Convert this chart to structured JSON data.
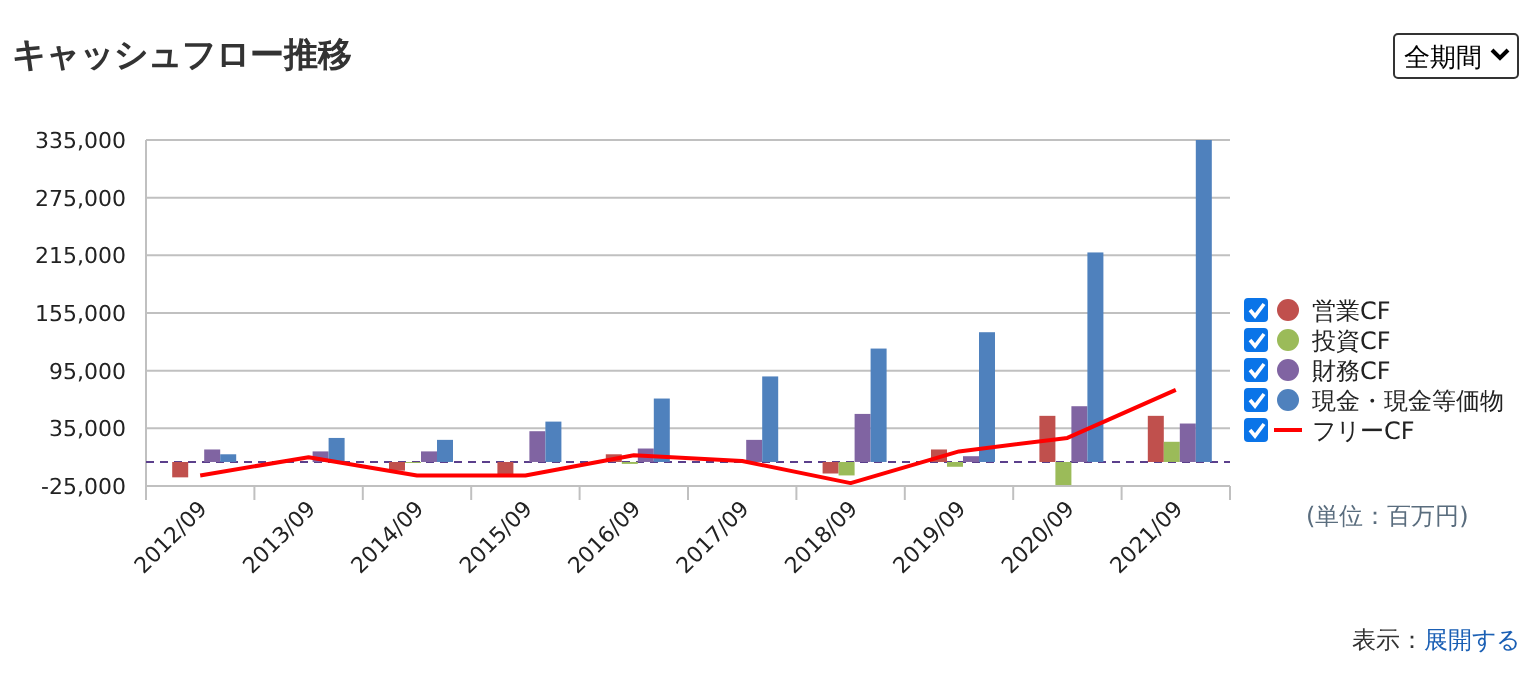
{
  "chart_data": {
    "type": "bar",
    "title": "キャッシュフロー推移",
    "categories": [
      "2012/09",
      "2013/09",
      "2014/09",
      "2015/09",
      "2016/09",
      "2017/09",
      "2018/09",
      "2019/09",
      "2020/09",
      "2021/09"
    ],
    "series": [
      {
        "name": "営業CF",
        "color": "#c0504d",
        "values": [
          -16000,
          null,
          -9000,
          -15000,
          8000,
          0,
          -12000,
          13000,
          48000,
          48000
        ]
      },
      {
        "name": "投資CF",
        "color": "#9bbb59",
        "values": [
          0,
          0,
          -1000,
          0,
          -2000,
          0,
          -14000,
          -5000,
          -24000,
          21000
        ]
      },
      {
        "name": "財務CF",
        "color": "#8064a2",
        "values": [
          13000,
          11000,
          11000,
          32000,
          14000,
          23000,
          50000,
          6000,
          58000,
          40000
        ]
      },
      {
        "name": "現金・現金等価物",
        "color": "#4f81bd",
        "values": [
          8000,
          25000,
          23000,
          42000,
          66000,
          89000,
          118000,
          135000,
          218000,
          335000
        ]
      },
      {
        "name": "フリーCF",
        "type": "line",
        "color": "#ff0000",
        "values": [
          -14000,
          5000,
          -14000,
          -14000,
          7000,
          1000,
          -22000,
          11000,
          25000,
          75000
        ]
      }
    ],
    "ylim": [
      -25000,
      335000
    ],
    "yticks": [
      {
        "value": -25000,
        "label": "-25,000"
      },
      {
        "value": 35000,
        "label": "35,000"
      },
      {
        "value": 95000,
        "label": "95,000"
      },
      {
        "value": 155000,
        "label": "155,000"
      },
      {
        "value": 215000,
        "label": "215,000"
      },
      {
        "value": 275000,
        "label": "275,000"
      },
      {
        "value": 335000,
        "label": "335,000"
      }
    ],
    "grid": "y",
    "legend": "right",
    "ref_lines": [
      {
        "axis": "y",
        "value": 0,
        "color": "#5b3f8c",
        "line_style": "dashed"
      }
    ],
    "annotations": [
      "全期間",
      "(単位：百万円)",
      "表示：展開する"
    ]
  }
}
